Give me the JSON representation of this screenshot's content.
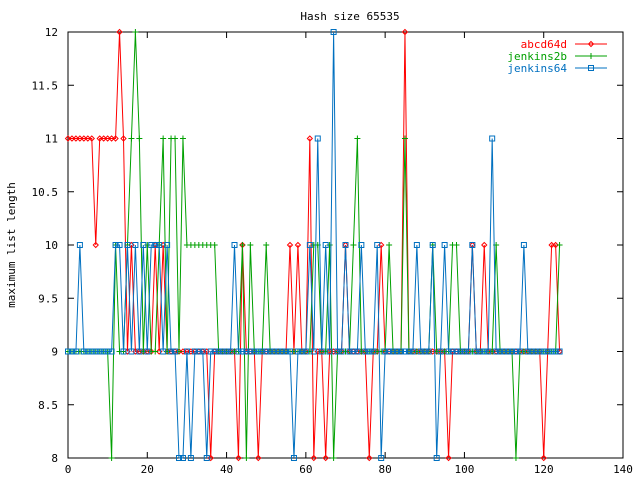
{
  "chart_data": {
    "type": "line",
    "title": "Hash size 65535",
    "xlabel": "",
    "ylabel": "maximum list length",
    "xlim": [
      0,
      140
    ],
    "ylim": [
      8,
      12
    ],
    "xticks": [
      0,
      20,
      40,
      60,
      80,
      100,
      120,
      140
    ],
    "yticks": [
      8,
      8.5,
      9,
      9.5,
      10,
      10.5,
      11,
      11.5,
      12
    ],
    "grid": false,
    "legend": "top-right",
    "series": [
      {
        "name": "abcd64d",
        "color": "#ff0000",
        "marker": "diamond",
        "x": [
          0,
          1,
          2,
          3,
          4,
          5,
          6,
          7,
          8,
          9,
          10,
          11,
          12,
          13,
          14,
          15,
          16,
          17,
          18,
          19,
          20,
          21,
          22,
          23,
          24,
          25,
          26,
          27,
          28,
          29,
          30,
          31,
          32,
          33,
          34,
          35,
          36,
          37,
          38,
          39,
          40,
          41,
          42,
          43,
          44,
          45,
          46,
          47,
          48,
          49,
          50,
          51,
          52,
          53,
          54,
          55,
          56,
          57,
          58,
          59,
          60,
          61,
          62,
          63,
          64,
          65,
          66,
          67,
          68,
          69,
          70,
          71,
          72,
          73,
          74,
          75,
          76,
          77,
          78,
          79,
          80,
          81,
          82,
          83,
          84,
          85,
          86,
          87,
          88,
          89,
          90,
          91,
          92,
          93,
          94,
          95,
          96,
          97,
          98,
          99,
          100,
          101,
          102,
          103,
          104,
          105,
          106,
          107,
          108,
          109,
          110,
          111,
          112,
          113,
          114,
          115,
          116,
          117,
          118,
          119,
          120,
          121,
          122,
          123,
          124
        ],
        "y": [
          11,
          11,
          11,
          11,
          11,
          11,
          11,
          10,
          11,
          11,
          11,
          11,
          11,
          12,
          11,
          9,
          10,
          9,
          9,
          9,
          9,
          9,
          10,
          9,
          10,
          9,
          9,
          9,
          9,
          9,
          9,
          9,
          9,
          9,
          9,
          9,
          8,
          9,
          9,
          9,
          9,
          9,
          9,
          8,
          10,
          9,
          9,
          9,
          8,
          9,
          9,
          9,
          9,
          9,
          9,
          9,
          10,
          9,
          10,
          9,
          9,
          11,
          8,
          9,
          9,
          8,
          9,
          9,
          9,
          9,
          10,
          9,
          9,
          9,
          9,
          9,
          8,
          9,
          9,
          10,
          9,
          9,
          9,
          9,
          9,
          12,
          9,
          9,
          9,
          9,
          9,
          9,
          9,
          9,
          9,
          9,
          8,
          9,
          9,
          9,
          9,
          9,
          10,
          9,
          9,
          10,
          9,
          9,
          9,
          9,
          9,
          9,
          9,
          9,
          9,
          9,
          9,
          9,
          9,
          9,
          8,
          9,
          10,
          10,
          9
        ]
      },
      {
        "name": "jenkins2b",
        "color": "#00a000",
        "marker": "plus",
        "x": [
          0,
          1,
          2,
          3,
          4,
          5,
          6,
          7,
          8,
          9,
          10,
          11,
          12,
          13,
          14,
          15,
          16,
          17,
          18,
          19,
          20,
          21,
          22,
          23,
          24,
          25,
          26,
          27,
          28,
          29,
          30,
          31,
          32,
          33,
          34,
          35,
          36,
          37,
          38,
          39,
          40,
          41,
          42,
          43,
          44,
          45,
          46,
          47,
          48,
          49,
          50,
          51,
          52,
          53,
          54,
          55,
          56,
          57,
          58,
          59,
          60,
          61,
          62,
          63,
          64,
          65,
          66,
          67,
          68,
          69,
          70,
          71,
          72,
          73,
          74,
          75,
          76,
          77,
          78,
          79,
          80,
          81,
          82,
          83,
          84,
          85,
          86,
          87,
          88,
          89,
          90,
          91,
          92,
          93,
          94,
          95,
          96,
          97,
          98,
          99,
          100,
          101,
          102,
          103,
          104,
          105,
          106,
          107,
          108,
          109,
          110,
          111,
          112,
          113,
          114,
          115,
          116,
          117,
          118,
          119,
          120,
          121,
          122,
          123,
          124
        ],
        "y": [
          9,
          9,
          9,
          9,
          9,
          9,
          9,
          9,
          9,
          9,
          9,
          8,
          10,
          9,
          9,
          10,
          11,
          12,
          11,
          9,
          10,
          9,
          9,
          10,
          11,
          9,
          11,
          11,
          9,
          11,
          10,
          10,
          10,
          10,
          10,
          10,
          10,
          10,
          9,
          9,
          9,
          9,
          9,
          9,
          10,
          8,
          10,
          9,
          9,
          9,
          10,
          9,
          9,
          9,
          9,
          9,
          9,
          9,
          9,
          9,
          9,
          9,
          10,
          10,
          9,
          9,
          10,
          8,
          9,
          9,
          9,
          9,
          10,
          11,
          9,
          9,
          9,
          9,
          9,
          9,
          9,
          10,
          9,
          9,
          9,
          11,
          9,
          9,
          9,
          9,
          9,
          9,
          10,
          9,
          9,
          9,
          9,
          10,
          10,
          9,
          9,
          9,
          9,
          9,
          9,
          9,
          9,
          9,
          10,
          9,
          9,
          9,
          9,
          8,
          9,
          9,
          9,
          9,
          9,
          9,
          9,
          9,
          9,
          9,
          10
        ]
      },
      {
        "name": "jenkins64",
        "color": "#0070c0",
        "marker": "square",
        "x": [
          0,
          1,
          2,
          3,
          4,
          5,
          6,
          7,
          8,
          9,
          10,
          11,
          12,
          13,
          14,
          15,
          16,
          17,
          18,
          19,
          20,
          21,
          22,
          23,
          24,
          25,
          26,
          27,
          28,
          29,
          30,
          31,
          32,
          33,
          34,
          35,
          36,
          37,
          38,
          39,
          40,
          41,
          42,
          43,
          44,
          45,
          46,
          47,
          48,
          49,
          50,
          51,
          52,
          53,
          54,
          55,
          56,
          57,
          58,
          59,
          60,
          61,
          62,
          63,
          64,
          65,
          66,
          67,
          68,
          69,
          70,
          71,
          72,
          73,
          74,
          75,
          76,
          77,
          78,
          79,
          80,
          81,
          82,
          83,
          84,
          85,
          86,
          87,
          88,
          89,
          90,
          91,
          92,
          93,
          94,
          95,
          96,
          97,
          98,
          99,
          100,
          101,
          102,
          103,
          104,
          105,
          106,
          107,
          108,
          109,
          110,
          111,
          112,
          113,
          114,
          115,
          116,
          117,
          118,
          119,
          120,
          121,
          122,
          123,
          124
        ],
        "y": [
          9,
          9,
          9,
          10,
          9,
          9,
          9,
          9,
          9,
          9,
          9,
          9,
          10,
          10,
          9,
          10,
          9,
          10,
          9,
          10,
          9,
          10,
          10,
          10,
          9,
          10,
          9,
          9,
          8,
          8,
          9,
          8,
          9,
          9,
          9,
          8,
          9,
          9,
          9,
          9,
          9,
          9,
          10,
          9,
          9,
          9,
          9,
          9,
          9,
          9,
          9,
          9,
          9,
          9,
          9,
          9,
          9,
          8,
          9,
          9,
          9,
          10,
          9,
          11,
          9,
          10,
          9,
          12,
          9,
          9,
          10,
          9,
          9,
          9,
          10,
          9,
          9,
          9,
          10,
          8,
          9,
          9,
          9,
          9,
          9,
          9,
          9,
          9,
          10,
          9,
          9,
          9,
          10,
          8,
          9,
          10,
          9,
          9,
          9,
          9,
          9,
          9,
          10,
          9,
          9,
          9,
          9,
          11,
          9,
          9,
          9,
          9,
          9,
          9,
          9,
          10,
          9,
          9,
          9,
          9,
          9,
          9,
          9,
          9,
          9
        ]
      }
    ]
  }
}
